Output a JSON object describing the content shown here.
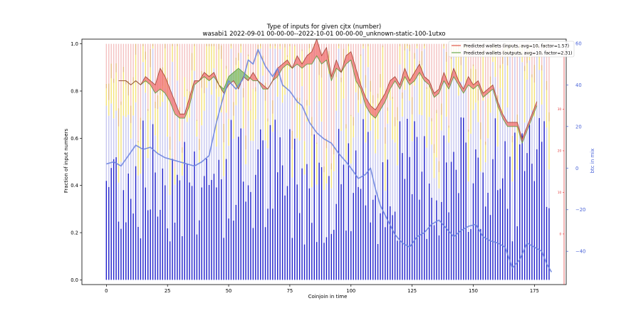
{
  "chart_data": {
    "type": "bar",
    "title": "Type of inputs for given cjtx (number)",
    "subtitle": "wasabi1 2022-09-01 00-00-00--2022-10-01 00-00-00_unknown-static-100-1utxo",
    "xlabel": "Coinjoin in time",
    "ylabel": "Fraction of input numbers",
    "y2label": "btc in mix",
    "xlim": [
      -10,
      188
    ],
    "ylim": [
      -0.02,
      1.02
    ],
    "y2lim": [
      -56,
      62
    ],
    "y3lim": [
      -0.02,
      1.02
    ],
    "x_ticks": [
      0,
      25,
      50,
      75,
      100,
      125,
      150,
      175
    ],
    "y_ticks": [
      0.0,
      0.2,
      0.4,
      0.6,
      0.8,
      1.0
    ],
    "y2_ticks": [
      -40,
      -20,
      0,
      20,
      40,
      60
    ],
    "y3_ticks": [
      0,
      10,
      20,
      30
    ],
    "legend": {
      "placement": "top-right",
      "entries": [
        {
          "label": "Predicted wallets (inputs, avg=10, factor=1.57)",
          "color": "#e05a4a"
        },
        {
          "label": "Predicted wallets (outputs, avg=10, factor=2.31)",
          "color": "#6aa84f"
        }
      ]
    },
    "colors": {
      "blue_stack": "#2222cc",
      "lavender_stack": "#c8c8f0",
      "yellow_stack": "#f3e27a",
      "tan_stack": "#e6b980",
      "pink_stack": "#f4c2c2",
      "btc_line": "#6b84df",
      "inputs_line": "#e05a4a",
      "outputs_line": "#5a9a3a",
      "fill_red": "#f07070",
      "fill_green": "#7ab86a",
      "y3_axis": "#e03030"
    },
    "n_coinjoins": 182,
    "series": [
      {
        "name": "btc in mix",
        "axis": "right",
        "x": [
          0,
          3,
          6,
          9,
          12,
          15,
          18,
          21,
          24,
          27,
          30,
          33,
          36,
          39,
          42,
          45,
          48,
          50,
          53,
          56,
          58,
          60,
          62,
          65,
          68,
          70,
          72,
          75,
          78,
          80,
          83,
          86,
          89,
          92,
          95,
          98,
          100,
          103,
          106,
          108,
          110,
          112,
          115,
          118,
          121,
          124,
          127,
          130,
          133,
          136,
          139,
          142,
          145,
          148,
          151,
          154,
          157,
          160,
          163,
          166,
          169,
          172,
          175,
          178,
          180,
          182
        ],
        "values": [
          2,
          3,
          1,
          6,
          11,
          9,
          10,
          7,
          5,
          4,
          3,
          2,
          1,
          3,
          6,
          22,
          35,
          42,
          38,
          43,
          52,
          50,
          57,
          49,
          44,
          48,
          40,
          37,
          32,
          30,
          22,
          17,
          14,
          12,
          7,
          3,
          0,
          -5,
          -3,
          0,
          -10,
          -18,
          -25,
          -32,
          -36,
          -38,
          -33,
          -31,
          -27,
          -25,
          -29,
          -33,
          -30,
          -28,
          -27,
          -33,
          -35,
          -36,
          -38,
          -48,
          -44,
          -36,
          -38,
          -40,
          -46,
          -50
        ]
      },
      {
        "name": "Predicted wallets (inputs, avg=10, factor=1.57)",
        "axis": "wallets",
        "x": [
          5,
          8,
          10,
          12,
          14,
          16,
          18,
          20,
          22,
          24,
          26,
          28,
          30,
          32,
          34,
          36,
          38,
          40,
          42,
          44,
          46,
          48,
          50,
          52,
          54,
          56,
          58,
          60,
          62,
          64,
          66,
          68,
          70,
          72,
          74,
          76,
          78,
          80,
          82,
          84,
          86,
          88,
          90,
          92,
          94,
          96,
          98,
          100,
          102,
          104,
          106,
          108,
          110,
          112,
          114,
          116,
          118,
          120,
          122,
          124,
          126,
          128,
          130,
          132,
          134,
          136,
          138,
          140,
          142,
          144,
          146,
          148,
          150,
          152,
          154,
          156,
          158,
          160,
          162,
          164,
          166,
          168,
          170,
          172,
          174,
          176
        ],
        "values": [
          30,
          30,
          29,
          30,
          29,
          31,
          30,
          29,
          33,
          31,
          28,
          25,
          22,
          22,
          26,
          30,
          30,
          32,
          31,
          32,
          29,
          27,
          29,
          30,
          28,
          31,
          30,
          32,
          30,
          29,
          28,
          30,
          33,
          34,
          35,
          33,
          36,
          34,
          36,
          37,
          40,
          36,
          38,
          31,
          35,
          32,
          36,
          37,
          33,
          29,
          26,
          24,
          23,
          25,
          27,
          30,
          31,
          29,
          33,
          30,
          32,
          34,
          31,
          30,
          27,
          28,
          32,
          29,
          33,
          30,
          28,
          31,
          29,
          30,
          27,
          28,
          29,
          25,
          22,
          20,
          20,
          20,
          16,
          19,
          22,
          25
        ]
      },
      {
        "name": "Predicted wallets (outputs, avg=10, factor=2.31)",
        "axis": "wallets",
        "x": [
          5,
          8,
          10,
          12,
          14,
          16,
          18,
          20,
          22,
          24,
          26,
          28,
          30,
          32,
          34,
          36,
          38,
          40,
          42,
          44,
          46,
          48,
          50,
          52,
          54,
          56,
          58,
          60,
          62,
          64,
          66,
          68,
          70,
          72,
          74,
          76,
          78,
          80,
          82,
          84,
          86,
          88,
          90,
          92,
          94,
          96,
          98,
          100,
          102,
          104,
          106,
          108,
          110,
          112,
          114,
          116,
          118,
          120,
          122,
          124,
          126,
          128,
          130,
          132,
          134,
          136,
          138,
          140,
          142,
          144,
          146,
          148,
          150,
          152,
          154,
          156,
          158,
          160,
          162,
          164,
          166,
          168,
          170,
          172,
          174,
          176
        ],
        "values": [
          30,
          30,
          29,
          30,
          29,
          30,
          29,
          27,
          28,
          27,
          25,
          22,
          21,
          21,
          24,
          29,
          30,
          31,
          30,
          31,
          29,
          28,
          31,
          32,
          33,
          32,
          31,
          30,
          30,
          28,
          28,
          30,
          31,
          33,
          34,
          33,
          34,
          33,
          34,
          34,
          36,
          34,
          35,
          30,
          33,
          32,
          34,
          35,
          30,
          28,
          24,
          22,
          21,
          23,
          25,
          28,
          30,
          28,
          31,
          29,
          30,
          32,
          30,
          29,
          26,
          27,
          30,
          28,
          31,
          29,
          27,
          29,
          28,
          29,
          26,
          27,
          28,
          24,
          21,
          19,
          19,
          19,
          15,
          18,
          21,
          24
        ]
      }
    ]
  }
}
